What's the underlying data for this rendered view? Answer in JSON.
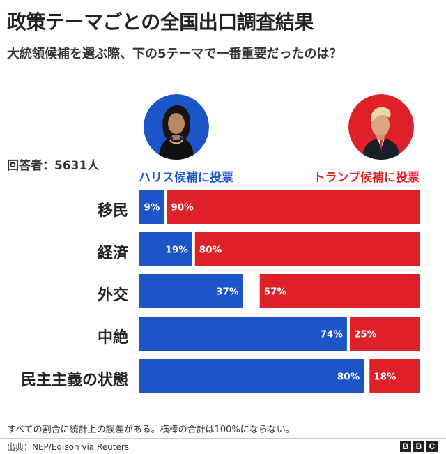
{
  "title": "政策テーマごとの全国出口調査結果",
  "subtitle": "大統領候補を選ぶ際、下の5テーマで一番重要だったのは？",
  "respondents": "回答者：5631人",
  "note": "すべての割合に統計上の誤差がある。横棒の合計は100%にならない。",
  "source": "出典：NEP/Edison via Reuters",
  "logo": [
    "B",
    "B",
    "C"
  ],
  "colors": {
    "harris": "#1c55c8",
    "trump": "#de2128",
    "harris_text": "#1c55c8",
    "trump_text": "#de2128"
  },
  "chart_data": {
    "type": "bar",
    "orientation": "horizontal",
    "stacked": true,
    "categories": [
      "移民",
      "経済",
      "外交",
      "中絶",
      "民主主義の状態"
    ],
    "series": [
      {
        "name": "ハリス候補に投票",
        "values": [
          9,
          19,
          37,
          74,
          80
        ],
        "labels": [
          "9%",
          "19%",
          "37%",
          "74%",
          "80%"
        ],
        "color": "#1c55c8"
      },
      {
        "name": "トランプ候補に投票",
        "values": [
          90,
          80,
          57,
          25,
          18
        ],
        "labels": [
          "90%",
          "80%",
          "57%",
          "25%",
          "18%"
        ],
        "color": "#de2128"
      }
    ],
    "xlim": [
      0,
      100
    ],
    "legend": "top",
    "grid": false
  }
}
